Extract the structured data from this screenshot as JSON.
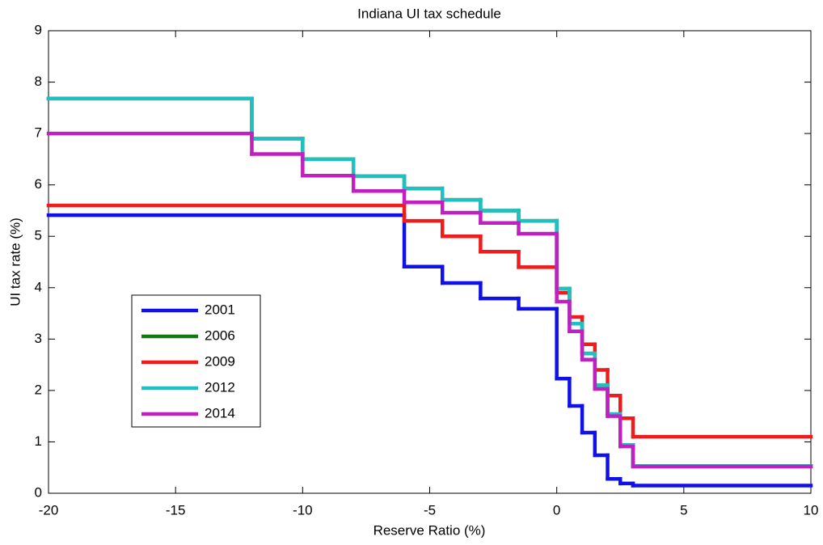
{
  "chart_data": {
    "type": "step",
    "title": "Indiana UI tax schedule",
    "x_label": "Reserve Ratio (%)",
    "y_label": "UI tax rate (%)",
    "xlim": [
      -20,
      10
    ],
    "ylim": [
      0,
      9
    ],
    "xticks": [
      -20,
      -15,
      -10,
      -5,
      0,
      5,
      10
    ],
    "yticks": [
      0,
      1,
      2,
      3,
      4,
      5,
      6,
      7,
      8,
      9
    ],
    "legend": "lower left",
    "series": [
      {
        "name": "2001",
        "color": "#1010e8",
        "x": [
          -20,
          -6,
          -4.5,
          -3,
          -1.5,
          0,
          0.5,
          1,
          1.5,
          2,
          2.5,
          3
        ],
        "values": [
          5.41,
          4.41,
          4.09,
          3.79,
          3.59,
          2.23,
          1.7,
          1.18,
          0.74,
          0.28,
          0.19,
          0.15
        ]
      },
      {
        "name": "2006",
        "color": "#107810",
        "x": [
          -20,
          -12,
          -10,
          -8,
          -6,
          -4.5,
          -3,
          -1.5,
          0,
          0.5,
          1,
          1.5,
          2,
          2.5,
          3
        ],
        "values": [
          7.68,
          6.9,
          6.5,
          6.17,
          5.93,
          5.71,
          5.5,
          5.3,
          3.98,
          3.3,
          2.72,
          2.1,
          1.54,
          0.94,
          0.53
        ]
      },
      {
        "name": "2009",
        "color": "#ee1c1c",
        "x": [
          -20,
          -6,
          -4.5,
          -3,
          -1.5,
          0,
          0.5,
          1,
          1.5,
          2,
          2.5,
          3
        ],
        "values": [
          5.6,
          5.3,
          5.0,
          4.7,
          4.4,
          3.9,
          3.43,
          2.9,
          2.4,
          1.9,
          1.46,
          1.1
        ]
      },
      {
        "name": "2012",
        "color": "#20c0c0",
        "x": [
          -20,
          -12,
          -10,
          -8,
          -6,
          -4.5,
          -3,
          -1.5,
          0,
          0.5,
          1,
          1.5,
          2,
          2.5,
          3
        ],
        "values": [
          7.68,
          6.9,
          6.5,
          6.17,
          5.93,
          5.71,
          5.5,
          5.3,
          3.98,
          3.3,
          2.72,
          2.1,
          1.54,
          0.94,
          0.53
        ]
      },
      {
        "name": "2014",
        "color": "#c020c0",
        "x": [
          -20,
          -12,
          -10,
          -8,
          -6,
          -4.5,
          -3,
          -1.5,
          0,
          0.5,
          1,
          1.5,
          2,
          2.5,
          3
        ],
        "values": [
          7.0,
          6.6,
          6.18,
          5.88,
          5.66,
          5.46,
          5.26,
          5.05,
          3.73,
          3.15,
          2.6,
          2.03,
          1.5,
          0.91,
          0.52
        ]
      }
    ]
  }
}
